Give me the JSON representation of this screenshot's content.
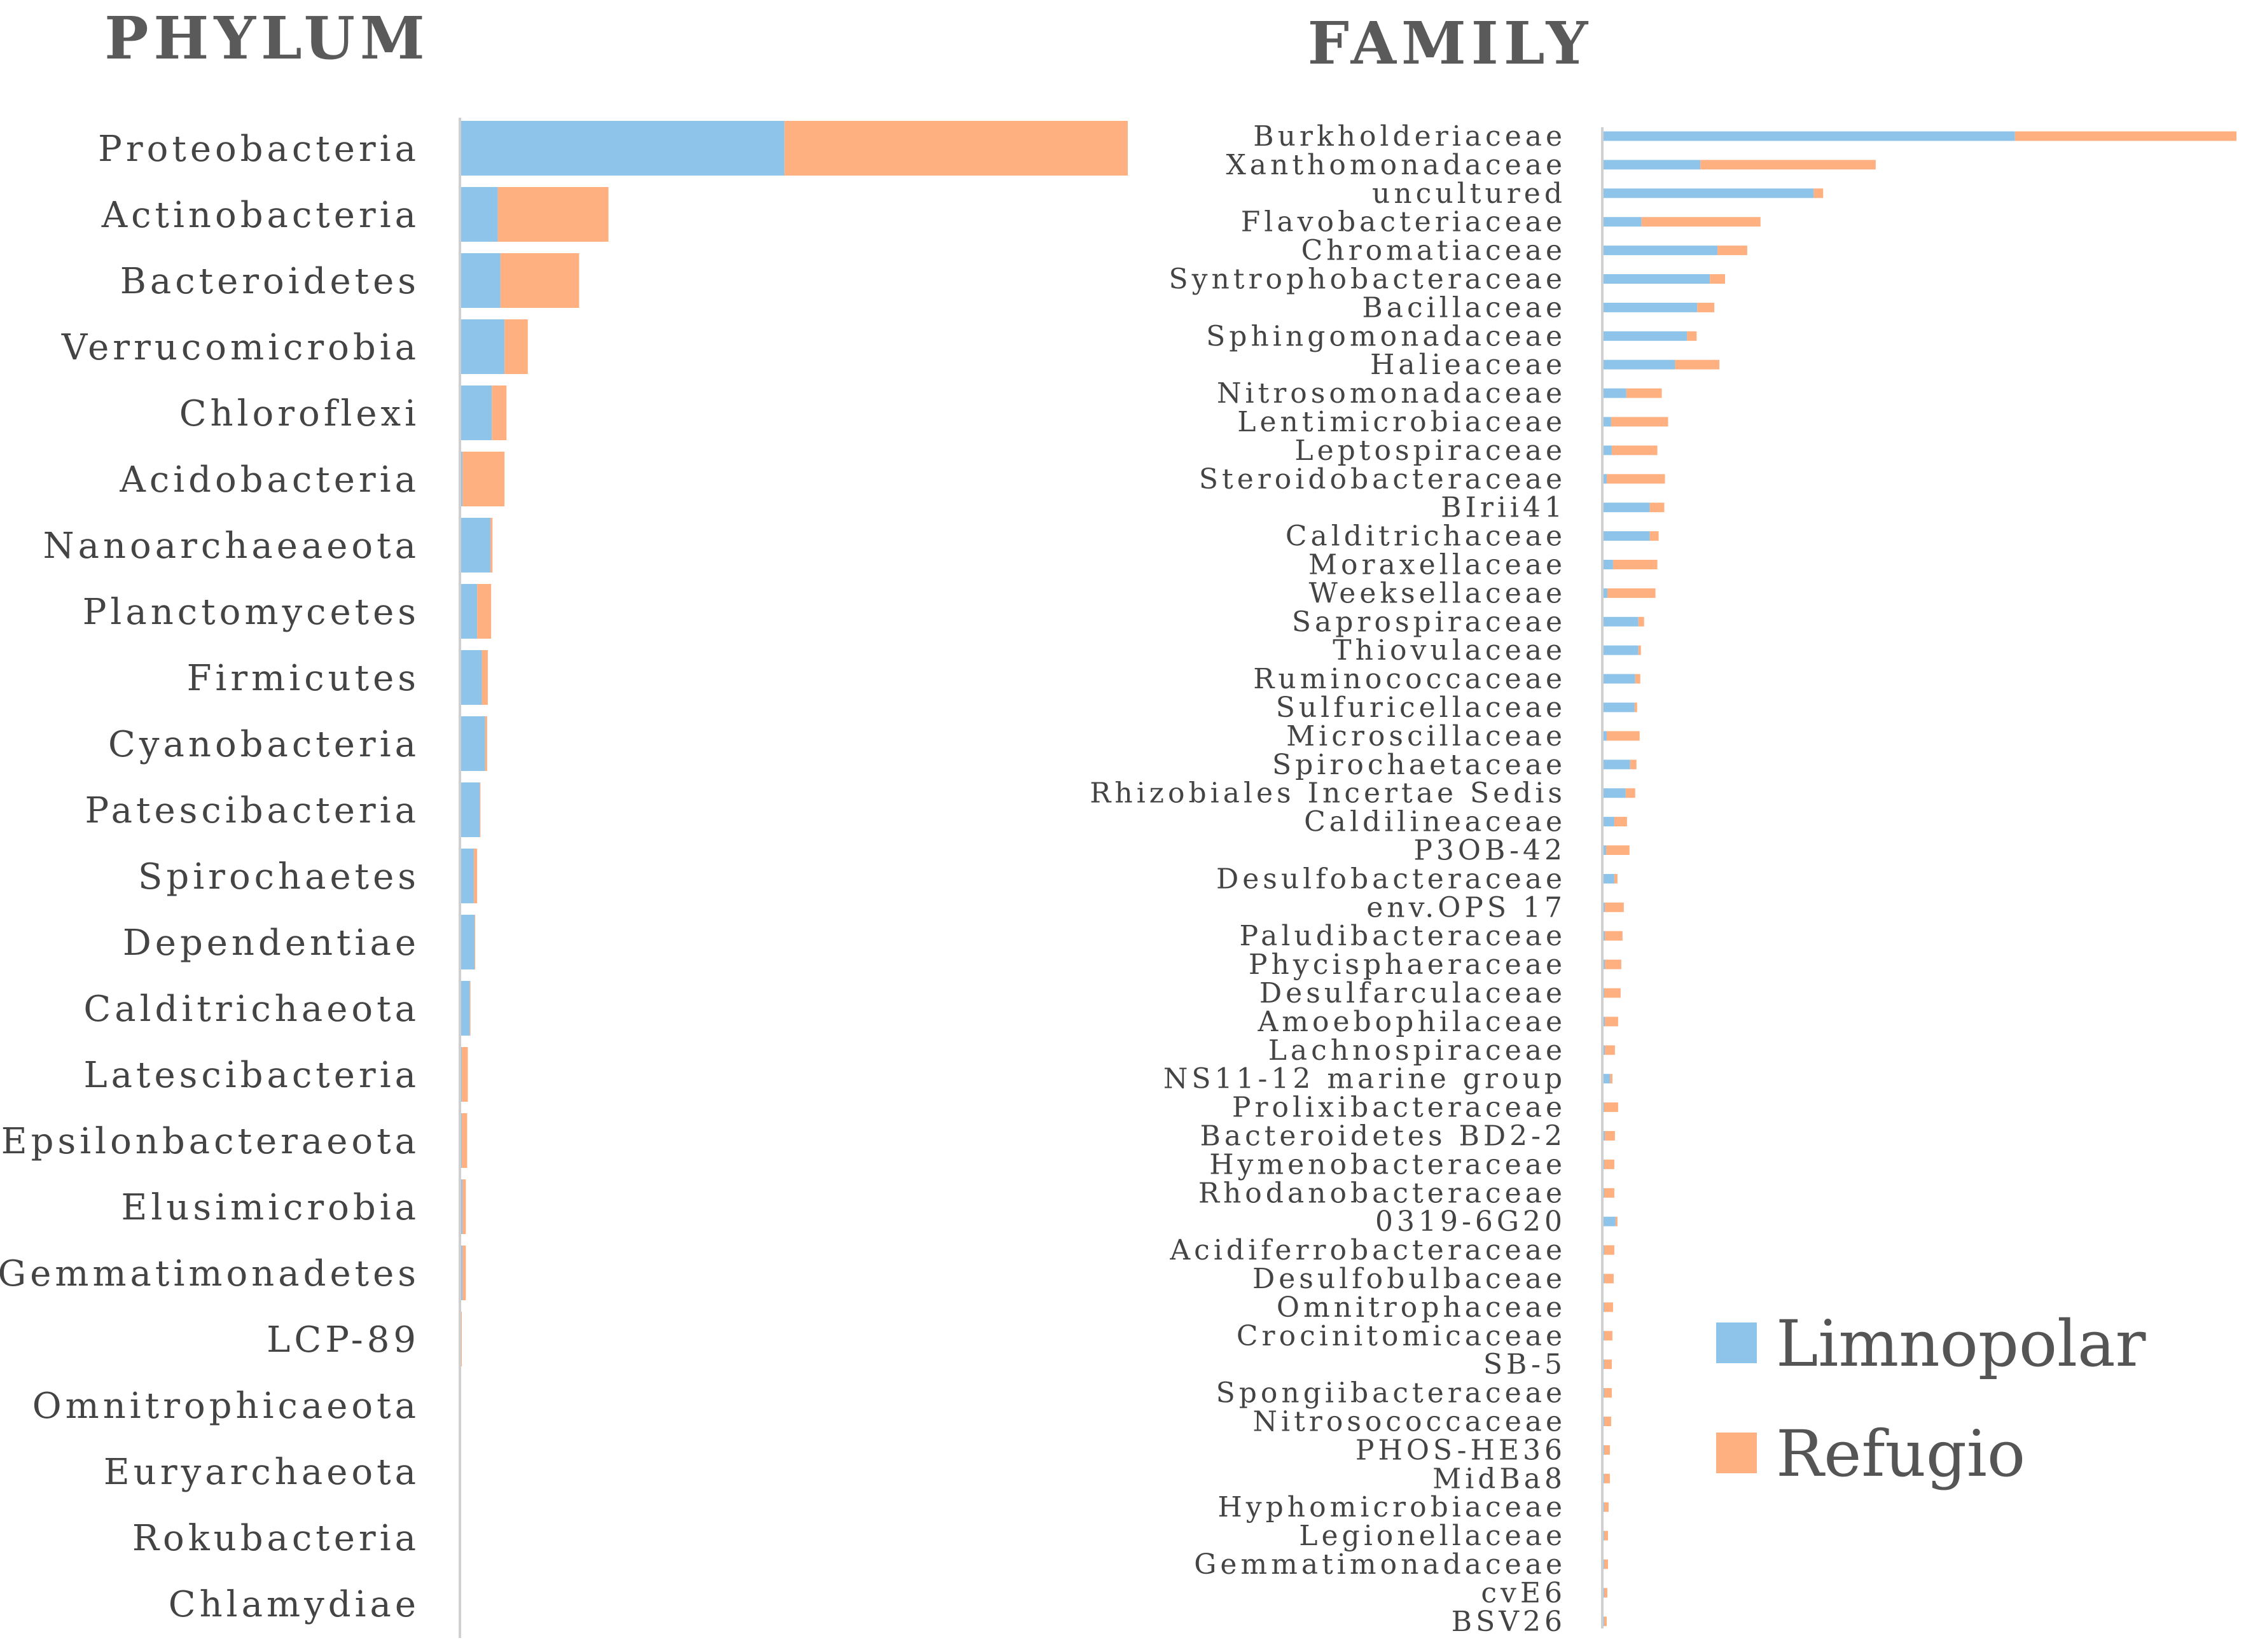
{
  "colors": {
    "limnopolar": "#8ec4ea",
    "refugio": "#ffb081",
    "axis": "#d0d0d0"
  },
  "legend": {
    "limnopolar": "Limnopolar",
    "refugio": "Refugio"
  },
  "chart_data": [
    {
      "type": "bar",
      "orientation": "horizontal",
      "stacked": true,
      "title": "PHYLUM",
      "xlim": [
        0,
        100
      ],
      "categories": [
        "Proteobacteria",
        "Actinobacteria",
        "Bacteroidetes",
        "Verrucomicrobia",
        "Chloroflexi",
        "Acidobacteria",
        "Nanoarchaeaeota",
        "Planctomycetes",
        "Firmicutes",
        "Cyanobacteria",
        "Patescibacteria",
        "Spirochaetes",
        "Dependentiae",
        "Calditrichaeota",
        "Latescibacteria",
        "Epsilonbacteraeota",
        "Elusimicrobia",
        "Gemmatimonadetes",
        "LCP-89",
        "Omnitrophicaeota",
        "Euryarchaeota",
        "Rokubacteria",
        "Chlamydiae"
      ],
      "series": [
        {
          "name": "Limnopolar",
          "values": [
            48.5,
            5.5,
            5.9,
            6.5,
            4.6,
            0.2,
            4.4,
            2.4,
            3.1,
            3.6,
            2.8,
            1.9,
            2.0,
            1.3,
            0.1,
            0.1,
            0.2,
            0.2,
            0,
            0,
            0,
            0,
            0
          ]
        },
        {
          "name": "Refugio",
          "values": [
            51.5,
            16.6,
            11.8,
            3.5,
            2.2,
            6.3,
            0.3,
            2.1,
            0.9,
            0.3,
            0.1,
            0.5,
            0.1,
            0.1,
            0.9,
            0.8,
            0.5,
            0.5,
            0.1,
            0,
            0,
            0,
            0
          ]
        }
      ]
    },
    {
      "type": "bar",
      "orientation": "horizontal",
      "stacked": true,
      "title": "FAMILY",
      "xlim": [
        0,
        100
      ],
      "categories": [
        "Burkholderiaceae",
        "Xanthomonadaceae",
        "uncultured",
        "Flavobacteriaceae",
        "Chromatiaceae",
        "Syntrophobacteraceae",
        "Bacillaceae",
        "Sphingomonadaceae",
        "Halieaceae",
        "Nitrosomonadaceae",
        "Lentimicrobiaceae",
        "Leptospiraceae",
        "Steroidobacteraceae",
        "BIrii41",
        "Calditrichaceae",
        "Moraxellaceae",
        "Weeksellaceae",
        "Saprospiraceae",
        "Thiovulaceae",
        "Ruminococcaceae",
        "Sulfuricellaceae",
        "Microscillaceae",
        "Spirochaetaceae",
        "Rhizobiales Incertae Sedis",
        "Caldilineaceae",
        "P3OB-42",
        "Desulfobacteraceae",
        "env.OPS 17",
        "Paludibacteraceae",
        "Phycisphaeraceae",
        "Desulfarculaceae",
        "Amoebophilaceae",
        "Lachnospiraceae",
        "NS11-12 marine group",
        "Prolixibacteraceae",
        "Bacteroidetes BD2-2",
        "Hymenobacteraceae",
        "Rhodanobacteraceae",
        "0319-6G20",
        "Acidiferrobacteraceae",
        "Desulfobulbaceae",
        "Omnitrophaceae",
        "Crocinitomicaceae",
        "SB-5",
        "Spongiibacteraceae",
        "Nitrosococcaceae",
        "PHOS-HE36",
        "MidBa8",
        "Hyphomicrobiaceae",
        "Legionellaceae",
        "Gemmatimonadaceae",
        "cvE6",
        "BSV26"
      ],
      "series": [
        {
          "name": "Limnopolar",
          "values": [
            65.0,
            15.3,
            33.2,
            6.0,
            18.0,
            16.8,
            14.8,
            13.2,
            11.3,
            3.6,
            1.2,
            1.3,
            0.5,
            7.3,
            7.3,
            1.5,
            0.6,
            5.5,
            5.5,
            5.0,
            4.9,
            0.5,
            4.2,
            3.5,
            1.7,
            0.4,
            1.7,
            0.2,
            0.2,
            0.2,
            0.1,
            0.2,
            0.2,
            1.0,
            0.1,
            0.2,
            0.1,
            0.1,
            1.9,
            0.1,
            0.1,
            0.1,
            0.1,
            0.1,
            0.1,
            0.1,
            0.1,
            0.1,
            0.1,
            0.1,
            0.1,
            0.1,
            0.1
          ]
        },
        {
          "name": "Refugio",
          "values": [
            35.0,
            27.7,
            1.5,
            18.8,
            4.7,
            2.4,
            2.7,
            1.5,
            7.0,
            5.6,
            9.0,
            7.2,
            9.2,
            2.3,
            1.4,
            7.0,
            7.6,
            0.9,
            0.4,
            0.8,
            0.4,
            5.2,
            1.0,
            1.5,
            2.0,
            3.7,
            0.5,
            3.0,
            2.8,
            2.6,
            2.6,
            2.1,
            1.6,
            0.4,
            2.2,
            1.6,
            1.6,
            1.6,
            0.3,
            1.6,
            1.5,
            1.4,
            1.3,
            1.2,
            1.2,
            1.1,
            0.9,
            0.9,
            0.7,
            0.6,
            0.6,
            0.5,
            0.4
          ]
        }
      ]
    }
  ]
}
